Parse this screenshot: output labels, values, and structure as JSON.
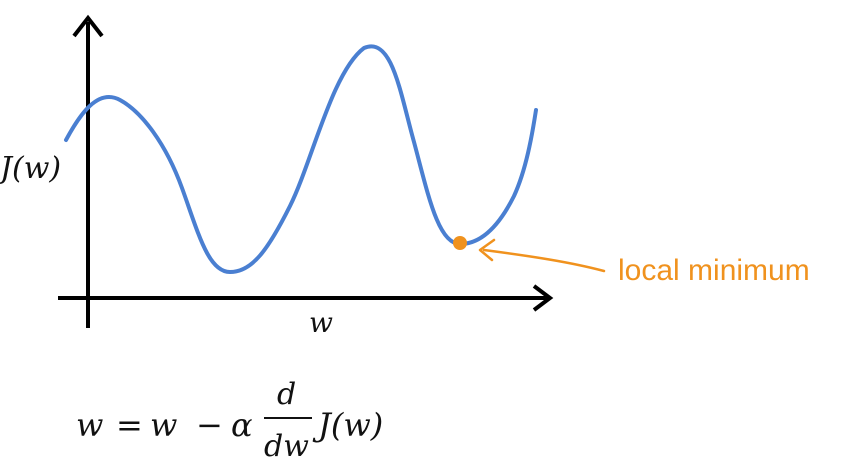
{
  "diagram": {
    "y_axis_label": "J(w)",
    "x_axis_label": "w",
    "annotation": "local minimum",
    "colors": {
      "curve": "#4a7fd1",
      "annotation": "#f0921e",
      "axes": "#000000"
    }
  },
  "formula": {
    "lhs": "w",
    "equals": "=",
    "w": "w",
    "minus": "−",
    "alpha": "α",
    "numerator": "d",
    "denominator": "dw",
    "function": "J(w)"
  }
}
